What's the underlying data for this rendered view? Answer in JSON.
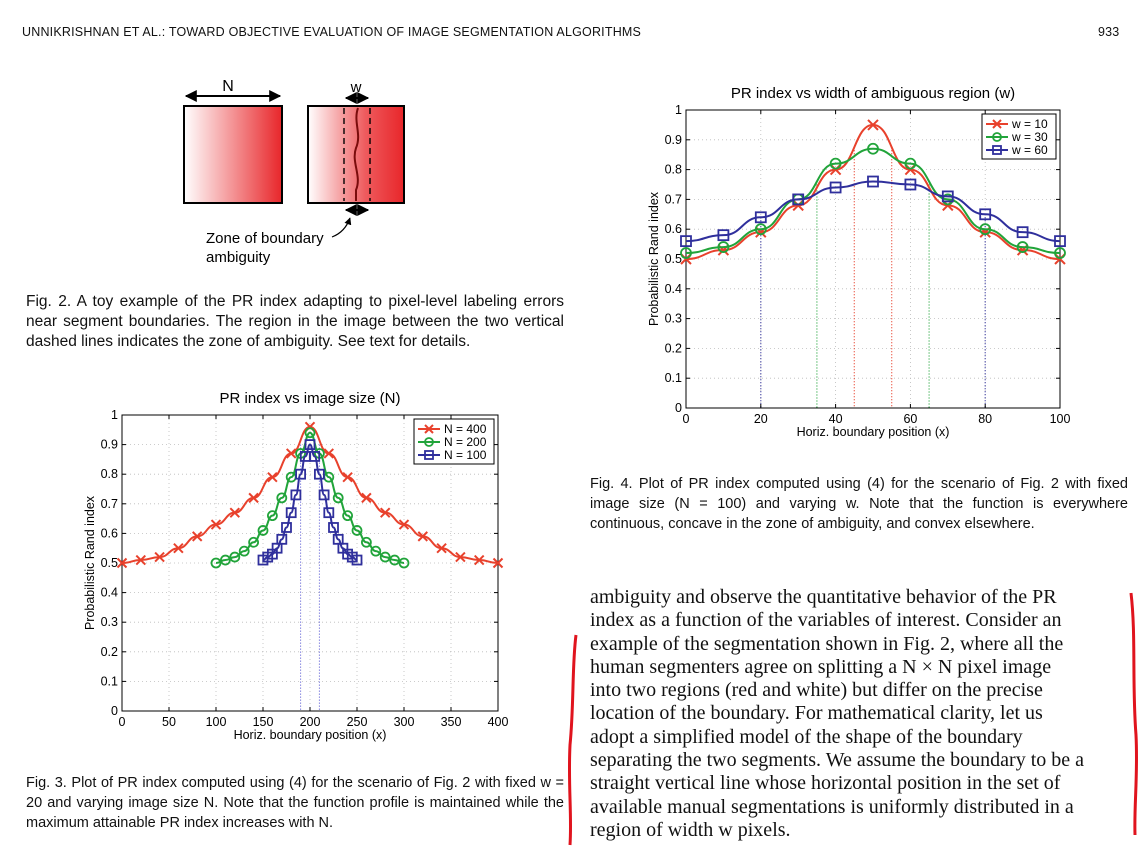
{
  "header": {
    "running_title": "UNNIKRISHNAN ET AL.: TOWARD OBJECTIVE EVALUATION OF IMAGE SEGMENTATION ALGORITHMS",
    "page_number": "933"
  },
  "fig2": {
    "label_N": "N",
    "label_w": "w",
    "zone_label_line1": "Zone of boundary",
    "zone_label_line2": "ambiguity",
    "caption": "Fig. 2. A toy example of the PR index adapting to pixel-level labeling errors near segment boundaries. The region in the image between the two vertical dashed lines indicates the zone of ambiguity. See text for details.",
    "colors": {
      "red": "#e8262a",
      "white": "#ffffff"
    }
  },
  "fig3": {
    "caption": "Fig. 3. Plot of PR index computed using (4) for the scenario of Fig. 2 with fixed w = 20 and varying image size N. Note that the function profile is maintained while the maximum attainable PR index increases with N."
  },
  "fig4": {
    "caption": "Fig. 4. Plot of PR index computed using (4) for the scenario of Fig. 2 with fixed image size (N = 100) and varying w. Note that the function is everywhere continuous, concave in the zone of ambiguity, and convex elsewhere."
  },
  "body_lines": [
    "ambiguity and observe the quantitative behavior of the PR",
    "index as a function of the variables of interest. Consider an",
    "example of the segmentation shown in Fig. 2, where all the",
    "human segmenters agree on splitting a N × N pixel image",
    "into two regions (red and white) but differ on the precise",
    "location of the boundary. For mathematical clarity, let us",
    "adopt a simplified model of the shape of the boundary",
    "separating the two segments. We assume the boundary to be a",
    "straight vertical line whose horizontal position in the set of",
    "available manual segmentations is uniformly distributed in a",
    "region of width w pixels."
  ],
  "annotation_color": "#e0141e",
  "chart_data": [
    {
      "type": "line",
      "title": "PR index vs image size (N)",
      "xlabel": "Horiz. boundary position (x)",
      "ylabel": "Probabilistic Rand index",
      "xlim": [
        0,
        400
      ],
      "ylim": [
        0,
        1
      ],
      "xticks": [
        0,
        50,
        100,
        150,
        200,
        250,
        300,
        350,
        400
      ],
      "yticks": [
        0,
        0.1,
        0.2,
        0.3,
        0.4,
        0.5,
        0.6,
        0.7,
        0.8,
        0.9,
        1
      ],
      "ytick_labels": [
        "0",
        "0.1",
        "0.2",
        "0.3",
        "0.4",
        "0.5",
        "0.6",
        "0.7",
        "0.8",
        "0.9",
        "1"
      ],
      "grid": true,
      "legend": "top-right",
      "vlines": [
        190,
        210
      ],
      "series": [
        {
          "name": "N = 400",
          "color": "#e8412c",
          "marker": "x",
          "x": [
            0,
            20,
            40,
            60,
            80,
            100,
            120,
            140,
            160,
            180,
            200,
            220,
            240,
            260,
            280,
            300,
            320,
            340,
            360,
            380,
            400
          ],
          "y": [
            0.5,
            0.51,
            0.52,
            0.55,
            0.59,
            0.63,
            0.67,
            0.72,
            0.79,
            0.87,
            0.96,
            0.87,
            0.79,
            0.72,
            0.67,
            0.63,
            0.59,
            0.55,
            0.52,
            0.51,
            0.5
          ]
        },
        {
          "name": "N = 200",
          "color": "#21a43a",
          "marker": "o",
          "x": [
            100,
            110,
            120,
            130,
            140,
            150,
            160,
            170,
            180,
            190,
            200,
            210,
            220,
            230,
            240,
            250,
            260,
            270,
            280,
            290,
            300
          ],
          "y": [
            0.5,
            0.51,
            0.52,
            0.54,
            0.57,
            0.61,
            0.66,
            0.72,
            0.79,
            0.87,
            0.94,
            0.87,
            0.79,
            0.72,
            0.66,
            0.61,
            0.57,
            0.54,
            0.52,
            0.51,
            0.5
          ]
        },
        {
          "name": "N = 100",
          "color": "#2f2f9c",
          "marker": "s",
          "x": [
            150,
            155,
            160,
            165,
            170,
            175,
            180,
            185,
            190,
            195,
            200,
            205,
            210,
            215,
            220,
            225,
            230,
            235,
            240,
            245,
            250
          ],
          "y": [
            0.51,
            0.52,
            0.53,
            0.55,
            0.58,
            0.62,
            0.67,
            0.73,
            0.8,
            0.86,
            0.9,
            0.86,
            0.8,
            0.73,
            0.67,
            0.62,
            0.58,
            0.55,
            0.53,
            0.52,
            0.51
          ]
        }
      ]
    },
    {
      "type": "line",
      "title": "PR index vs width of ambiguous region (w)",
      "xlabel": "Horiz. boundary position (x)",
      "ylabel": "Probabilistic Rand index",
      "xlim": [
        0,
        100
      ],
      "ylim": [
        0,
        1
      ],
      "xticks": [
        0,
        20,
        40,
        60,
        80,
        100
      ],
      "yticks": [
        0,
        0.1,
        0.2,
        0.3,
        0.4,
        0.5,
        0.6,
        0.7,
        0.8,
        0.9,
        1
      ],
      "ytick_labels": [
        "0",
        "0.1",
        "0.2",
        "0.3",
        "0.4",
        "0.5",
        "0.6",
        "0.7",
        "0.8",
        "0.9",
        "1"
      ],
      "grid": true,
      "legend": "top-right",
      "vlines_colored": [
        {
          "x": 45,
          "color": "#e8412c"
        },
        {
          "x": 55,
          "color": "#e8412c"
        },
        {
          "x": 35,
          "color": "#21a43a"
        },
        {
          "x": 65,
          "color": "#21a43a"
        },
        {
          "x": 20,
          "color": "#2f2f9c"
        },
        {
          "x": 80,
          "color": "#2f2f9c"
        }
      ],
      "series": [
        {
          "name": "w = 10",
          "color": "#e8412c",
          "marker": "x",
          "x": [
            0,
            10,
            20,
            30,
            40,
            50,
            60,
            70,
            80,
            90,
            100
          ],
          "y": [
            0.5,
            0.53,
            0.59,
            0.68,
            0.8,
            0.95,
            0.8,
            0.68,
            0.59,
            0.53,
            0.5
          ]
        },
        {
          "name": "w = 30",
          "color": "#21a43a",
          "marker": "o",
          "x": [
            0,
            10,
            20,
            30,
            40,
            50,
            60,
            70,
            80,
            90,
            100
          ],
          "y": [
            0.52,
            0.54,
            0.6,
            0.7,
            0.82,
            0.87,
            0.82,
            0.7,
            0.6,
            0.54,
            0.52
          ]
        },
        {
          "name": "w = 60",
          "color": "#2f2f9c",
          "marker": "s",
          "x": [
            0,
            10,
            20,
            30,
            40,
            50,
            60,
            70,
            80,
            90,
            100
          ],
          "y": [
            0.56,
            0.58,
            0.64,
            0.7,
            0.74,
            0.76,
            0.75,
            0.71,
            0.65,
            0.59,
            0.56
          ]
        }
      ]
    }
  ]
}
